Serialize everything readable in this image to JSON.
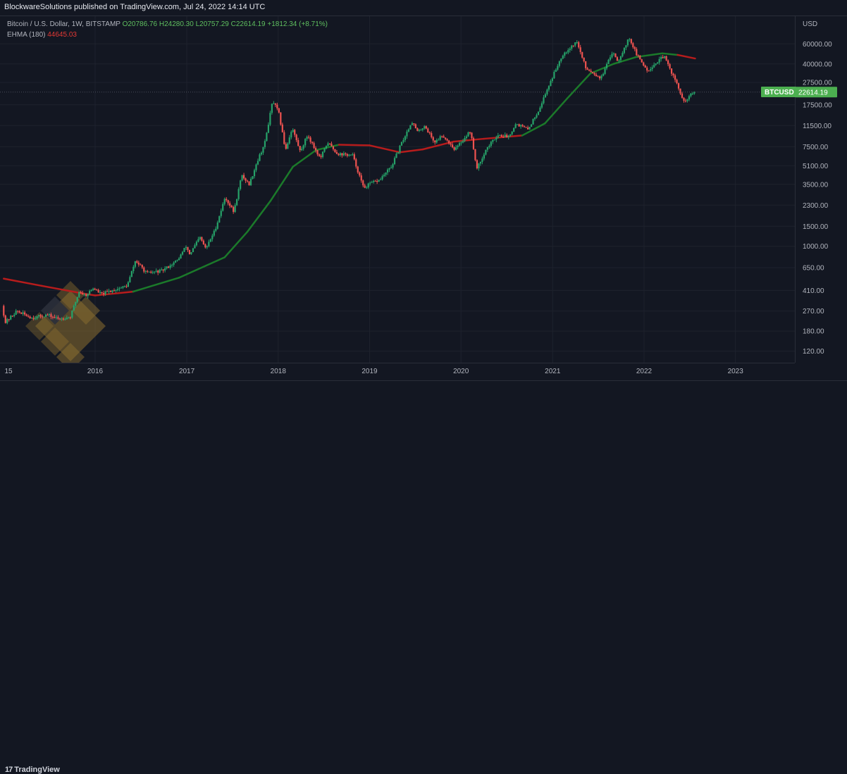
{
  "header": {
    "published_line": "BlockwareSolutions published on TradingView.com, Jul 24, 2022 14:14 UTC"
  },
  "legend": {
    "symbol_line": "Bitcoin / U.S. Dollar, 1W, BITSTAMP",
    "open": "O20786.76",
    "high": "H24280.30",
    "low": "L20757.29",
    "close": "C22614.19",
    "change": "+1812.34 (+8.71%)",
    "indicator_name": "EHMA (180)",
    "indicator_value": "44645.03"
  },
  "footer": {
    "brand": "TradingView"
  },
  "colors": {
    "background": "#131722",
    "grid": "#1e222d",
    "up": "#26a269",
    "down": "#ef5350",
    "ehma_bull": "#1b7a2a",
    "ehma_bear": "#b71c1c",
    "price_label_bg": "#4caf50",
    "watermark": "#8a6d2f"
  },
  "chart_data": {
    "type": "candlestick",
    "title": "Bitcoin / U.S. Dollar, 1W, BITSTAMP",
    "currency": "USD",
    "y_scale": "log",
    "ylim": [
      95,
      105000
    ],
    "price_ticks": [
      60000,
      40000,
      27500,
      17500,
      11500,
      7500,
      5100,
      3500,
      2300,
      1500,
      1000,
      650,
      410,
      270,
      180,
      120
    ],
    "price_tick_labels": [
      "60000.00",
      "40000.00",
      "27500.00",
      "17500.00",
      "11500.00",
      "7500.00",
      "5100.00",
      "3500.00",
      "2300.00",
      "1500.00",
      "1000.00",
      "650.00",
      "410.00",
      "270.00",
      "180.00",
      "120.00"
    ],
    "time_ticks": [
      "15",
      "2016",
      "2017",
      "2018",
      "2019",
      "2020",
      "2021",
      "2022",
      "2023"
    ],
    "last_price": {
      "symbol": "BTCUSD",
      "value": "22614.19"
    },
    "price_path": [
      {
        "date": "2015-01-01",
        "price": 300
      },
      {
        "date": "2015-01-15",
        "price": 215
      },
      {
        "date": "2015-03-01",
        "price": 270
      },
      {
        "date": "2015-05-01",
        "price": 235
      },
      {
        "date": "2015-07-01",
        "price": 250
      },
      {
        "date": "2015-08-15",
        "price": 230
      },
      {
        "date": "2015-10-01",
        "price": 240
      },
      {
        "date": "2015-11-05",
        "price": 400
      },
      {
        "date": "2015-12-01",
        "price": 370
      },
      {
        "date": "2016-01-01",
        "price": 430
      },
      {
        "date": "2016-02-01",
        "price": 380
      },
      {
        "date": "2016-04-01",
        "price": 420
      },
      {
        "date": "2016-05-15",
        "price": 450
      },
      {
        "date": "2016-06-17",
        "price": 750
      },
      {
        "date": "2016-08-01",
        "price": 580
      },
      {
        "date": "2016-10-01",
        "price": 610
      },
      {
        "date": "2016-12-01",
        "price": 750
      },
      {
        "date": "2017-01-05",
        "price": 1000
      },
      {
        "date": "2017-01-20",
        "price": 850
      },
      {
        "date": "2017-03-01",
        "price": 1200
      },
      {
        "date": "2017-03-25",
        "price": 950
      },
      {
        "date": "2017-05-01",
        "price": 1400
      },
      {
        "date": "2017-06-10",
        "price": 2700
      },
      {
        "date": "2017-07-15",
        "price": 2000
      },
      {
        "date": "2017-08-15",
        "price": 4200
      },
      {
        "date": "2017-09-15",
        "price": 3500
      },
      {
        "date": "2017-10-15",
        "price": 5500
      },
      {
        "date": "2017-11-15",
        "price": 8000
      },
      {
        "date": "2017-12-17",
        "price": 19000
      },
      {
        "date": "2018-01-10",
        "price": 15000
      },
      {
        "date": "2018-02-06",
        "price": 7000
      },
      {
        "date": "2018-03-05",
        "price": 11000
      },
      {
        "date": "2018-04-06",
        "price": 6800
      },
      {
        "date": "2018-05-05",
        "price": 9500
      },
      {
        "date": "2018-06-25",
        "price": 5900
      },
      {
        "date": "2018-07-25",
        "price": 8200
      },
      {
        "date": "2018-09-01",
        "price": 6500
      },
      {
        "date": "2018-11-01",
        "price": 6300
      },
      {
        "date": "2018-12-15",
        "price": 3250
      },
      {
        "date": "2019-01-15",
        "price": 3600
      },
      {
        "date": "2019-02-15",
        "price": 3800
      },
      {
        "date": "2019-04-05",
        "price": 5000
      },
      {
        "date": "2019-05-15",
        "price": 8000
      },
      {
        "date": "2019-06-26",
        "price": 12500
      },
      {
        "date": "2019-07-20",
        "price": 10000
      },
      {
        "date": "2019-08-15",
        "price": 11500
      },
      {
        "date": "2019-09-25",
        "price": 8200
      },
      {
        "date": "2019-10-26",
        "price": 9500
      },
      {
        "date": "2019-12-15",
        "price": 7100
      },
      {
        "date": "2020-02-14",
        "price": 10300
      },
      {
        "date": "2020-03-12",
        "price": 4800
      },
      {
        "date": "2020-04-15",
        "price": 7000
      },
      {
        "date": "2020-06-01",
        "price": 9500
      },
      {
        "date": "2020-07-15",
        "price": 9200
      },
      {
        "date": "2020-08-15",
        "price": 12000
      },
      {
        "date": "2020-10-01",
        "price": 10600
      },
      {
        "date": "2020-11-15",
        "price": 16000
      },
      {
        "date": "2020-12-27",
        "price": 27000
      },
      {
        "date": "2021-02-15",
        "price": 48000
      },
      {
        "date": "2021-04-14",
        "price": 63000
      },
      {
        "date": "2021-05-20",
        "price": 37000
      },
      {
        "date": "2021-07-20",
        "price": 30000
      },
      {
        "date": "2021-09-06",
        "price": 52000
      },
      {
        "date": "2021-09-25",
        "price": 42000
      },
      {
        "date": "2021-11-10",
        "price": 68000
      },
      {
        "date": "2021-12-10",
        "price": 48000
      },
      {
        "date": "2022-01-22",
        "price": 35000
      },
      {
        "date": "2022-03-28",
        "price": 47000
      },
      {
        "date": "2022-05-12",
        "price": 29000
      },
      {
        "date": "2022-06-18",
        "price": 18000
      },
      {
        "date": "2022-07-05",
        "price": 20500
      },
      {
        "date": "2022-07-24",
        "price": 22614
      }
    ],
    "ehma_series": {
      "name": "EHMA (180)",
      "points": [
        {
          "date": "2015-01-01",
          "value": 520
        },
        {
          "date": "2015-06-01",
          "value": 450
        },
        {
          "date": "2015-11-01",
          "value": 390
        },
        {
          "date": "2016-01-01",
          "value": 370
        },
        {
          "date": "2016-06-01",
          "value": 400
        },
        {
          "date": "2016-12-01",
          "value": 530
        },
        {
          "date": "2017-06-01",
          "value": 800
        },
        {
          "date": "2017-09-01",
          "value": 1350
        },
        {
          "date": "2017-12-01",
          "value": 2500
        },
        {
          "date": "2018-03-01",
          "value": 5000
        },
        {
          "date": "2018-06-01",
          "value": 7000
        },
        {
          "date": "2018-09-01",
          "value": 7800
        },
        {
          "date": "2019-01-01",
          "value": 7700
        },
        {
          "date": "2019-05-01",
          "value": 6700
        },
        {
          "date": "2019-08-01",
          "value": 7100
        },
        {
          "date": "2019-12-01",
          "value": 8300
        },
        {
          "date": "2020-04-01",
          "value": 8800
        },
        {
          "date": "2020-09-01",
          "value": 9400
        },
        {
          "date": "2020-12-01",
          "value": 12000
        },
        {
          "date": "2021-03-01",
          "value": 20000
        },
        {
          "date": "2021-06-01",
          "value": 33000
        },
        {
          "date": "2021-09-01",
          "value": 40000
        },
        {
          "date": "2021-12-01",
          "value": 46000
        },
        {
          "date": "2022-03-15",
          "value": 49500
        },
        {
          "date": "2022-05-15",
          "value": 48000
        },
        {
          "date": "2022-07-24",
          "value": 44645
        }
      ],
      "bull_until": "2022-03-28"
    }
  }
}
